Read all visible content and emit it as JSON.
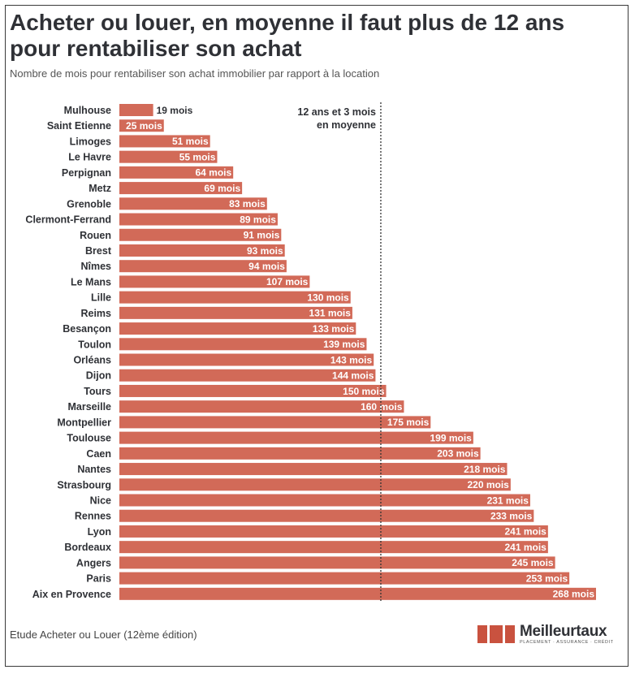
{
  "title": "Acheter ou louer, en moyenne il faut plus de 12 ans pour rentabiliser son achat",
  "subtitle": "Nombre de mois pour rentabiliser son achat immobilier par rapport à la location",
  "source": "Etude Acheter ou Louer (12ème édition)",
  "logo": {
    "name": "Meilleurtaux",
    "tagline": "PLACEMENT · ASSURANCE · CRÉDIT"
  },
  "colors": {
    "bar": "#d26a58",
    "label_inside": "#ffffff",
    "label_outside": "#2f3136",
    "reference_line": "#333333"
  },
  "chart_data": {
    "type": "bar",
    "orientation": "horizontal",
    "categories": [
      "Mulhouse",
      "Saint Etienne",
      "Limoges",
      "Le Havre",
      "Perpignan",
      "Metz",
      "Grenoble",
      "Clermont-Ferrand",
      "Rouen",
      "Brest",
      "Nîmes",
      "Le Mans",
      "Lille",
      "Reims",
      "Besançon",
      "Toulon",
      "Orléans",
      "Dijon",
      "Tours",
      "Marseille",
      "Montpellier",
      "Toulouse",
      "Caen",
      "Nantes",
      "Strasbourg",
      "Nice",
      "Rennes",
      "Lyon",
      "Bordeaux",
      "Angers",
      "Paris",
      "Aix en Provence"
    ],
    "values": [
      19,
      25,
      51,
      55,
      64,
      69,
      83,
      89,
      91,
      93,
      94,
      107,
      130,
      131,
      133,
      139,
      143,
      144,
      150,
      160,
      175,
      199,
      203,
      218,
      220,
      231,
      233,
      241,
      241,
      245,
      253,
      268
    ],
    "data_labels": [
      "19 mois",
      "25 mois",
      "51 mois",
      "55 mois",
      "64 mois",
      "69 mois",
      "83 mois",
      "89 mois",
      "91 mois",
      "93 mois",
      "94 mois",
      "107 mois",
      "130 mois",
      "131 mois",
      "133 mois",
      "139 mois",
      "143 mois",
      "144 mois",
      "150 mois",
      "160 mois",
      "175 mois",
      "199 mois",
      "203 mois",
      "218 mois",
      "220 mois",
      "231 mois",
      "233 mois",
      "241 mois",
      "241 mois",
      "245 mois",
      "253 mois",
      "268 mois"
    ],
    "xlim": [
      0,
      268
    ],
    "grid": false,
    "reference_line": {
      "value": 147,
      "label_line1": "12 ans et 3 mois",
      "label_line2": "en moyenne"
    }
  }
}
